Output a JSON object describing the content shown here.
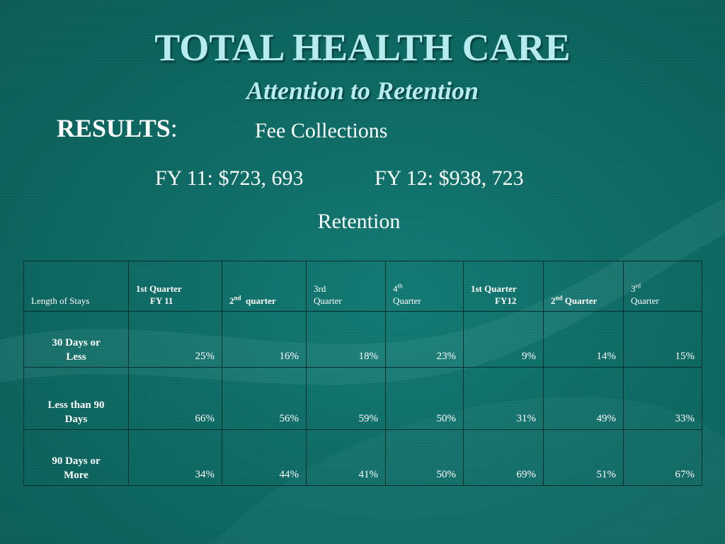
{
  "slide": {
    "title": "TOTAL HEALTH CARE",
    "subtitle": "Attention to Retention",
    "results_label": "RESULTS",
    "results_colon": ":",
    "fee_label": "Fee Collections",
    "fy11": "FY 11: $723, 693",
    "fy12": "FY 12: $938, 723",
    "retention_label": "Retention"
  },
  "table": {
    "headers": {
      "length": "Length of Stays",
      "q1_fy11_line1": "1st Quarter",
      "q1_fy11_line2": "FY 11",
      "q2_num": "2",
      "q2_sup": "nd",
      "q2_text": "quarter",
      "q3_line1": "3rd",
      "q3_line2": "Quarter",
      "q4_num": "4",
      "q4_sup": "th",
      "q4_line2": "Quarter",
      "q1_fy12_line1": "1st Quarter",
      "q1_fy12_line2": "FY12",
      "q2b_num": "2",
      "q2b_sup": "nd",
      "q2b_text": "Quarter",
      "q3b_num": "3",
      "q3b_sup": "rd",
      "q3b_line2": "Quarter"
    },
    "rows": [
      {
        "label_line1": "30 Days or",
        "label_line2": "Less",
        "values": [
          "25%",
          "16%",
          "18%",
          "23%",
          "9%",
          "14%",
          "15%"
        ]
      },
      {
        "label_line1": "Less than 90",
        "label_line2": "Days",
        "values": [
          "66%",
          "56%",
          "59%",
          "50%",
          "31%",
          "49%",
          "33%"
        ]
      },
      {
        "label_line1": "90 Days or",
        "label_line2": "More",
        "values": [
          "34%",
          "44%",
          "41%",
          "50%",
          "69%",
          "51%",
          "67%"
        ]
      }
    ]
  },
  "colors": {
    "background": "#0d6660",
    "title": "#b6ecf0",
    "text": "#ffffff",
    "border": "#062e2b"
  }
}
